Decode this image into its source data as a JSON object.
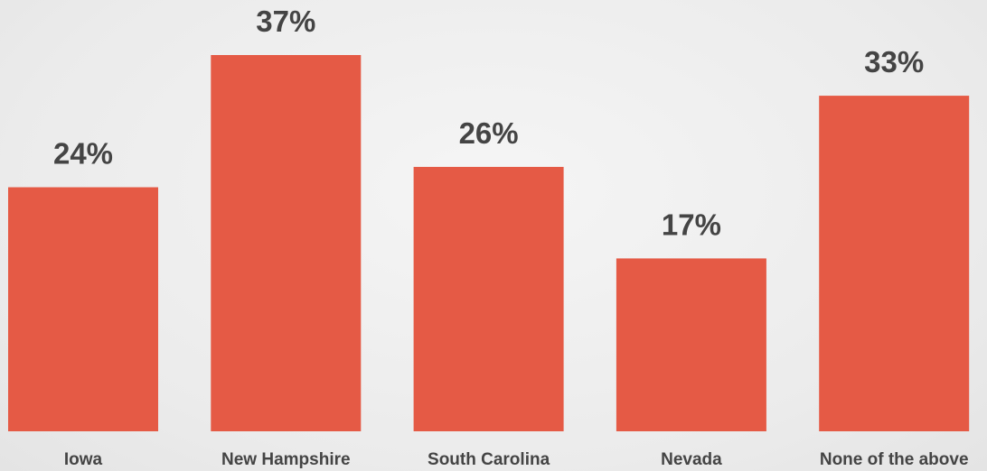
{
  "chart_data": {
    "type": "bar",
    "categories": [
      "Iowa",
      "New Hampshire",
      "South Carolina",
      "Nevada",
      "None of the above"
    ],
    "values": [
      24,
      37,
      26,
      17,
      33
    ],
    "value_labels": [
      "24%",
      "37%",
      "26%",
      "17%",
      "33%"
    ],
    "color": "#e55a45"
  }
}
